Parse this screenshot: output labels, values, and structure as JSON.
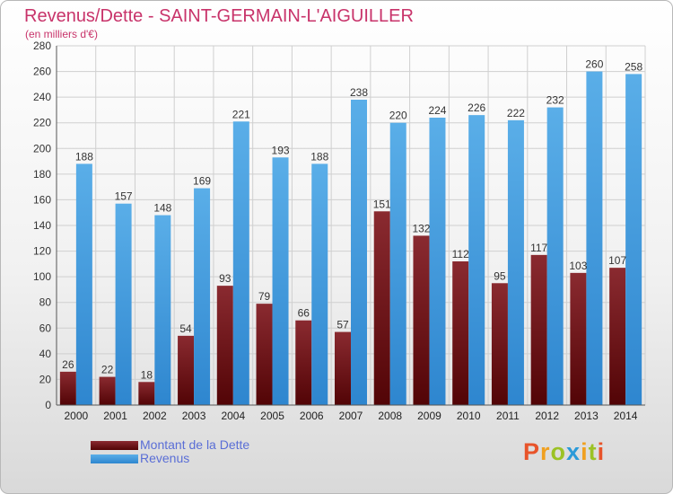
{
  "header": {
    "title": "Revenus/Dette - SAINT-GERMAIN-L'AIGUILLER",
    "subtitle": "(en milliers d'€)"
  },
  "chart_data": {
    "type": "bar",
    "categories": [
      "2000",
      "2001",
      "2002",
      "2003",
      "2004",
      "2005",
      "2006",
      "2007",
      "2008",
      "2009",
      "2010",
      "2011",
      "2012",
      "2013",
      "2014"
    ],
    "series": [
      {
        "name": "Montant de la Dette",
        "color": "#6e1618",
        "values": [
          26,
          22,
          18,
          54,
          93,
          79,
          66,
          57,
          151,
          132,
          112,
          95,
          117,
          103,
          107
        ]
      },
      {
        "name": "Revenus",
        "color": "#4a9fe0",
        "values": [
          188,
          157,
          148,
          169,
          221,
          193,
          188,
          238,
          220,
          224,
          226,
          222,
          232,
          260,
          258
        ]
      }
    ],
    "ylim": [
      0,
      280
    ],
    "yticks": [
      0,
      20,
      40,
      60,
      80,
      100,
      120,
      140,
      160,
      180,
      200,
      220,
      240,
      260,
      280
    ],
    "grid": true,
    "legend_position": "bottom-left"
  },
  "legend": {
    "items": [
      {
        "label": "Montant de la Dette"
      },
      {
        "label": "Revenus"
      }
    ]
  },
  "brand": {
    "letters": [
      "P",
      "r",
      "o",
      "x",
      "i",
      "t",
      "i"
    ],
    "colors": [
      "#e8542a",
      "#f0a020",
      "#9cc225",
      "#2a9ad8",
      "#f0a020",
      "#9cc225",
      "#e8542a"
    ]
  }
}
